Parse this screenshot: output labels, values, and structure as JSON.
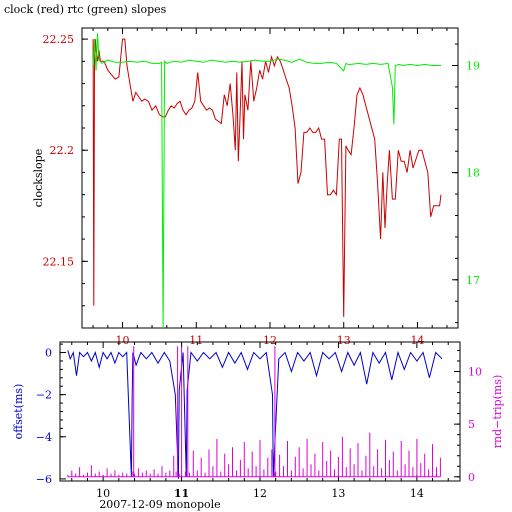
{
  "colors": {
    "clock": "#cc0000",
    "rtc": "#00ee00",
    "offset": "#0000cc",
    "rndtrip": "#dd00dd",
    "axis": "#000000"
  },
  "chart_data": [
    {
      "type": "line",
      "title": "clock (red) rtc (green) slopes",
      "ylabel": "clockslope",
      "x_range": [
        9.45,
        14.55
      ],
      "x_ticks": [
        10,
        11,
        12,
        13,
        14
      ],
      "x_tick_labels": [
        "10",
        "11",
        "12",
        "13",
        "14"
      ],
      "x_tick_labels_position": "top",
      "y_left": {
        "range": [
          22.12,
          22.255
        ],
        "ticks": [
          22.15,
          22.2,
          22.25
        ],
        "tick_labels": [
          "22.15",
          "22.2",
          "22.25"
        ]
      },
      "y_right": {
        "range": [
          16.55,
          19.35
        ],
        "ticks": [
          17,
          18,
          19
        ],
        "tick_labels": [
          "17",
          "18",
          "19"
        ]
      },
      "series": [
        {
          "name": "clock (red)",
          "axis": "left",
          "x": [
            9.6,
            9.61,
            9.62,
            9.63,
            9.64,
            9.66,
            9.68,
            9.7,
            9.75,
            9.8,
            9.85,
            9.9,
            9.95,
            10.0,
            10.03,
            10.06,
            10.1,
            10.14,
            10.18,
            10.22,
            10.26,
            10.3,
            10.35,
            10.4,
            10.45,
            10.5,
            10.55,
            10.58,
            10.62,
            10.66,
            10.7,
            10.74,
            10.78,
            10.82,
            10.86,
            10.9,
            10.94,
            10.98,
            11.02,
            11.06,
            11.1,
            11.14,
            11.18,
            11.22,
            11.26,
            11.3,
            11.34,
            11.38,
            11.42,
            11.46,
            11.5,
            11.53,
            11.55,
            11.57,
            11.59,
            11.62,
            11.64,
            11.66,
            11.7,
            11.74,
            11.78,
            11.82,
            11.86,
            11.9,
            11.94,
            11.98,
            12.02,
            12.06,
            12.1,
            12.14,
            12.18,
            12.22,
            12.26,
            12.3,
            12.34,
            12.38,
            12.42,
            12.46,
            12.5,
            12.54,
            12.58,
            12.62,
            12.66,
            12.7,
            12.74,
            12.78,
            12.82,
            12.86,
            12.9,
            12.94,
            12.97,
            13.0,
            13.03,
            13.06,
            13.1,
            13.14,
            13.18,
            13.22,
            13.26,
            13.3,
            13.34,
            13.38,
            13.42,
            13.46,
            13.5,
            13.53,
            13.56,
            13.59,
            13.62,
            13.66,
            13.7,
            13.74,
            13.78,
            13.82,
            13.86,
            13.9,
            13.94,
            13.98,
            14.02,
            14.06,
            14.1,
            14.14,
            14.18,
            14.22,
            14.26,
            14.3,
            14.32
          ],
          "values": [
            22.25,
            22.13,
            22.24,
            22.25,
            22.245,
            22.24,
            22.245,
            22.24,
            22.24,
            22.236,
            22.234,
            22.232,
            22.233,
            22.25,
            22.25,
            22.238,
            22.23,
            22.222,
            22.226,
            22.224,
            22.222,
            22.223,
            22.222,
            22.218,
            22.22,
            22.216,
            22.215,
            22.215,
            22.218,
            22.22,
            22.219,
            22.221,
            22.222,
            22.218,
            22.216,
            22.218,
            22.219,
            22.222,
            22.235,
            22.222,
            22.22,
            22.218,
            22.219,
            22.218,
            22.214,
            22.213,
            22.212,
            22.225,
            22.22,
            22.23,
            22.215,
            22.2,
            22.235,
            22.195,
            22.212,
            22.24,
            22.205,
            22.225,
            22.218,
            22.24,
            22.222,
            22.228,
            22.236,
            22.232,
            22.24,
            22.235,
            22.242,
            22.238,
            22.242,
            22.24,
            22.236,
            22.232,
            22.228,
            22.22,
            22.21,
            22.185,
            22.19,
            22.208,
            22.208,
            22.21,
            22.208,
            22.208,
            22.21,
            22.205,
            22.205,
            22.18,
            22.18,
            22.182,
            22.18,
            22.205,
            22.205,
            22.125,
            22.202,
            22.2,
            22.198,
            22.21,
            22.225,
            22.228,
            22.225,
            22.22,
            22.215,
            22.21,
            22.205,
            22.185,
            22.16,
            22.19,
            22.165,
            22.185,
            22.2,
            22.178,
            22.178,
            22.2,
            22.195,
            22.195,
            22.19,
            22.2,
            22.192,
            22.196,
            22.2,
            22.2,
            22.195,
            22.19,
            22.17,
            22.175,
            22.175,
            22.175,
            22.18
          ]
        },
        {
          "name": "rtc (green)",
          "axis": "right",
          "x": [
            9.6,
            9.62,
            9.64,
            9.66,
            9.68,
            9.72,
            9.8,
            9.9,
            10.0,
            10.1,
            10.2,
            10.3,
            10.4,
            10.5,
            10.53,
            10.55,
            10.57,
            10.6,
            10.7,
            10.8,
            10.9,
            11.0,
            11.1,
            11.2,
            11.3,
            11.4,
            11.5,
            11.6,
            11.7,
            11.8,
            11.9,
            12.0,
            12.1,
            12.2,
            12.3,
            12.4,
            12.5,
            12.6,
            12.7,
            12.8,
            12.9,
            13.0,
            13.03,
            13.06,
            13.1,
            13.2,
            13.3,
            13.4,
            13.5,
            13.6,
            13.66,
            13.68,
            13.7,
            13.75,
            13.8,
            13.9,
            14.0,
            14.1,
            14.2,
            14.3,
            14.32
          ],
          "values": [
            19.0,
            19.25,
            18.95,
            19.3,
            19.05,
            19.02,
            19.05,
            19.03,
            19.03,
            19.04,
            19.03,
            19.04,
            19.02,
            19.02,
            19.03,
            16.55,
            19.04,
            19.02,
            19.04,
            19.03,
            19.05,
            19.04,
            19.03,
            19.05,
            19.04,
            19.03,
            19.04,
            19.03,
            19.04,
            19.05,
            19.04,
            19.04,
            19.06,
            19.05,
            19.03,
            19.06,
            19.03,
            19.02,
            19.02,
            19.03,
            19.02,
            18.95,
            19.02,
            19.01,
            19.01,
            19.02,
            19.01,
            19.02,
            19.01,
            19.02,
            18.8,
            18.45,
            19.0,
            19.01,
            19.0,
            19.01,
            19.0,
            19.01,
            19.0,
            19.0,
            19.0
          ]
        }
      ]
    },
    {
      "type": "line",
      "xlabel": "2007-12-09 monopole",
      "x_range": [
        9.45,
        14.55
      ],
      "x_ticks": [
        10,
        11,
        12,
        13,
        14
      ],
      "x_tick_labels": [
        "10",
        "11",
        "12",
        "13",
        "14"
      ],
      "y_left": {
        "label": "offset(ms)",
        "range": [
          -6.1,
          0.5
        ],
        "ticks": [
          0,
          -2,
          -4,
          -6
        ],
        "tick_labels": [
          "0",
          "−2",
          "−4",
          "−6"
        ]
      },
      "y_right": {
        "label": "rnd−trip(ms)",
        "range": [
          -0.4,
          12.8
        ],
        "ticks": [
          0,
          5,
          10
        ],
        "tick_labels": [
          "0",
          "5",
          "10"
        ]
      },
      "series": [
        {
          "name": "offset",
          "axis": "left",
          "x": [
            9.55,
            9.58,
            9.62,
            9.66,
            9.7,
            9.75,
            9.8,
            9.85,
            9.9,
            9.95,
            10.0,
            10.05,
            10.1,
            10.15,
            10.2,
            10.25,
            10.3,
            10.36,
            10.37,
            10.38,
            10.42,
            10.48,
            10.55,
            10.62,
            10.7,
            10.78,
            10.85,
            10.92,
            10.96,
            10.97,
            11.02,
            11.06,
            11.07,
            11.12,
            11.2,
            11.28,
            11.36,
            11.44,
            11.52,
            11.6,
            11.68,
            11.76,
            11.84,
            11.92,
            12.0,
            12.08,
            12.16,
            12.17,
            12.24,
            12.32,
            12.4,
            12.48,
            12.56,
            12.64,
            12.72,
            12.8,
            12.88,
            12.96,
            13.04,
            13.12,
            13.2,
            13.28,
            13.36,
            13.44,
            13.52,
            13.6,
            13.68,
            13.76,
            13.84,
            13.92,
            14.0,
            14.08,
            14.16,
            14.24,
            14.32
          ],
          "values": [
            0.1,
            -0.3,
            0.0,
            -1.1,
            0.0,
            -0.2,
            0.0,
            -0.4,
            0.0,
            -0.7,
            0.0,
            -0.3,
            0.0,
            -0.5,
            0.0,
            -0.2,
            0.0,
            -5.9,
            -2.0,
            0.0,
            -0.6,
            0.0,
            -0.3,
            0.0,
            -0.5,
            0.0,
            -0.4,
            -2.0,
            -6.0,
            -1.8,
            0.0,
            -5.9,
            -1.8,
            0.0,
            -0.4,
            0.0,
            -0.3,
            0.0,
            -0.7,
            0.0,
            -0.5,
            0.0,
            -0.8,
            0.0,
            -0.3,
            0.0,
            -2.0,
            -5.9,
            -0.3,
            0.0,
            -0.9,
            0.0,
            -0.4,
            0.0,
            -1.1,
            0.0,
            -0.3,
            0.0,
            -0.9,
            0.0,
            -0.6,
            0.0,
            -1.5,
            0.0,
            -0.5,
            0.0,
            -1.3,
            0.0,
            -0.8,
            0.0,
            -0.4,
            0.0,
            -1.2,
            0.0,
            -0.3
          ]
        },
        {
          "name": "rnd-trip",
          "axis": "right",
          "x": [
            9.55,
            9.6,
            9.65,
            9.7,
            9.75,
            9.8,
            9.85,
            9.9,
            9.95,
            10.0,
            10.05,
            10.1,
            10.15,
            10.2,
            10.25,
            10.3,
            10.38,
            10.39,
            10.4,
            10.45,
            10.5,
            10.55,
            10.6,
            10.65,
            10.7,
            10.75,
            10.8,
            10.85,
            10.9,
            10.93,
            10.95,
            10.97,
            11.0,
            11.05,
            11.08,
            11.1,
            11.15,
            11.2,
            11.25,
            11.3,
            11.35,
            11.4,
            11.45,
            11.5,
            11.55,
            11.6,
            11.65,
            11.7,
            11.75,
            11.8,
            11.85,
            11.9,
            11.95,
            12.0,
            12.05,
            12.1,
            12.15,
            12.18,
            12.19,
            12.2,
            12.25,
            12.3,
            12.35,
            12.4,
            12.45,
            12.5,
            12.55,
            12.6,
            12.65,
            12.7,
            12.75,
            12.8,
            12.85,
            12.9,
            12.95,
            13.0,
            13.05,
            13.1,
            13.15,
            13.2,
            13.25,
            13.3,
            13.35,
            13.4,
            13.45,
            13.5,
            13.55,
            13.6,
            13.65,
            13.7,
            13.75,
            13.8,
            13.85,
            13.9,
            13.95,
            14.0,
            14.05,
            14.1,
            14.15,
            14.2,
            14.25,
            14.3
          ],
          "values": [
            0.2,
            0.6,
            0.3,
            0.9,
            0.2,
            0.4,
            1.1,
            0.3,
            0.5,
            0.2,
            0.8,
            0.3,
            0.6,
            0.2,
            0.4,
            0.3,
            0.5,
            12.4,
            0.3,
            0.8,
            0.4,
            0.6,
            0.3,
            0.7,
            0.3,
            1.0,
            0.4,
            0.6,
            2.0,
            0.5,
            12.4,
            0.3,
            12.4,
            0.5,
            12.4,
            0.4,
            2.5,
            0.6,
            1.8,
            0.4,
            2.6,
            1.0,
            3.6,
            0.5,
            2.2,
            1.2,
            2.8,
            0.6,
            1.6,
            3.3,
            0.8,
            2.4,
            1.0,
            3.5,
            0.7,
            1.8,
            2.6,
            0.4,
            12.4,
            0.5,
            2.1,
            1.0,
            3.4,
            0.6,
            1.9,
            2.8,
            0.8,
            3.6,
            1.2,
            2.2,
            0.6,
            3.3,
            1.5,
            2.5,
            0.7,
            1.9,
            3.8,
            0.9,
            2.7,
            1.2,
            3.2,
            0.6,
            2.0,
            4.2,
            1.0,
            2.6,
            0.8,
            3.5,
            1.6,
            2.4,
            0.6,
            3.4,
            1.2,
            2.5,
            0.9,
            3.6,
            1.3,
            2.2,
            0.7,
            3.1,
            0.9,
            1.8
          ]
        }
      ]
    }
  ]
}
